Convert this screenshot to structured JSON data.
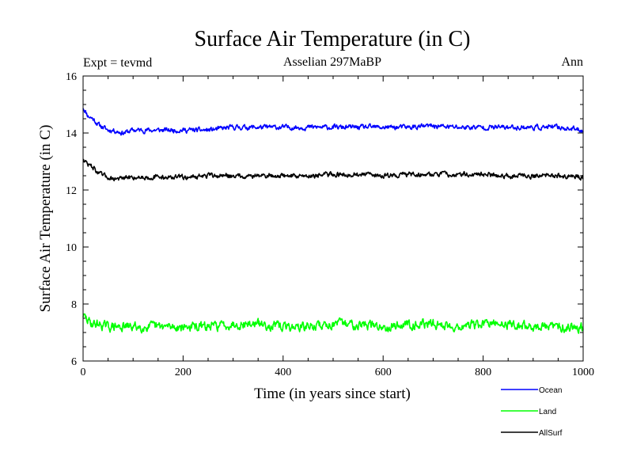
{
  "chart_data": {
    "type": "line",
    "title": "Surface Air Temperature (in C)",
    "subtitle_left": "Expt = tevmd",
    "subtitle_center": "Asselian 297MaBP",
    "subtitle_right": "Ann",
    "xlabel": "Time (in years since start)",
    "ylabel": "Surface Air Temperature (in C)",
    "xlim": [
      0,
      1000
    ],
    "ylim": [
      6,
      16
    ],
    "x_ticks": [
      0,
      200,
      400,
      600,
      800,
      1000
    ],
    "y_ticks": [
      6,
      8,
      10,
      12,
      14,
      16
    ],
    "x_tick_labels": [
      "0",
      "200",
      "400",
      "600",
      "800",
      "1000"
    ],
    "y_tick_labels": [
      "6",
      "8",
      "10",
      "12",
      "14",
      "16"
    ],
    "legend_position": "bottom-right",
    "series": [
      {
        "name": "Ocean",
        "color": "#0000ff",
        "x": [
          0,
          10,
          20,
          30,
          40,
          50,
          60,
          70,
          80,
          100,
          150,
          200,
          250,
          300,
          350,
          400,
          450,
          500,
          550,
          600,
          650,
          700,
          750,
          800,
          850,
          900,
          950,
          1000
        ],
        "values": [
          14.9,
          14.6,
          14.5,
          14.3,
          14.2,
          14.1,
          14.1,
          14.05,
          14.0,
          14.1,
          14.1,
          14.1,
          14.1,
          14.2,
          14.2,
          14.2,
          14.2,
          14.2,
          14.2,
          14.2,
          14.2,
          14.25,
          14.2,
          14.2,
          14.2,
          14.2,
          14.2,
          14.1
        ]
      },
      {
        "name": "Land",
        "color": "#00ff00",
        "x": [
          0,
          10,
          20,
          30,
          50,
          100,
          150,
          200,
          250,
          300,
          350,
          400,
          450,
          500,
          550,
          600,
          650,
          700,
          750,
          800,
          850,
          900,
          950,
          1000
        ],
        "values": [
          7.6,
          7.4,
          7.3,
          7.3,
          7.2,
          7.2,
          7.2,
          7.2,
          7.2,
          7.3,
          7.3,
          7.2,
          7.2,
          7.3,
          7.3,
          7.2,
          7.3,
          7.3,
          7.2,
          7.3,
          7.3,
          7.2,
          7.2,
          7.2
        ]
      },
      {
        "name": "AllSurf",
        "color": "#000000",
        "x": [
          0,
          10,
          20,
          30,
          40,
          50,
          60,
          80,
          100,
          150,
          200,
          250,
          300,
          350,
          400,
          450,
          500,
          550,
          600,
          650,
          700,
          750,
          800,
          850,
          900,
          950,
          1000
        ],
        "values": [
          13.1,
          12.9,
          12.8,
          12.6,
          12.5,
          12.45,
          12.4,
          12.4,
          12.45,
          12.45,
          12.45,
          12.5,
          12.5,
          12.5,
          12.5,
          12.5,
          12.55,
          12.55,
          12.5,
          12.55,
          12.55,
          12.55,
          12.55,
          12.5,
          12.5,
          12.5,
          12.45
        ]
      }
    ]
  }
}
